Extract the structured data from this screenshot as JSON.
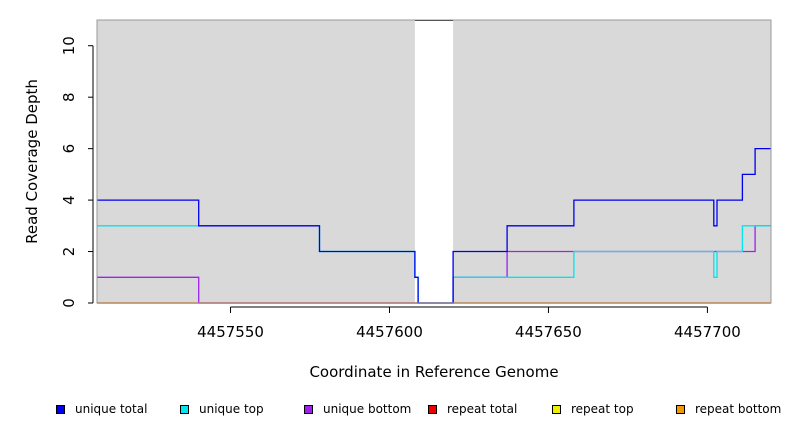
{
  "chart_data": {
    "type": "line",
    "xlabel": "Coordinate in Reference Genome",
    "ylabel": "Read Coverage Depth",
    "xlim": [
      4457508,
      4457720
    ],
    "ylim": [
      0,
      11
    ],
    "x_ticks": [
      4457550,
      4457600,
      4457650,
      4457700
    ],
    "x_tick_labels": [
      "4457550",
      "4457600",
      "4457650",
      "4457700"
    ],
    "y_ticks": [
      0,
      2,
      4,
      6,
      8,
      10
    ],
    "y_tick_labels": [
      "0",
      "2",
      "4",
      "6",
      "8",
      "10"
    ],
    "background_color": "#d9d9d9",
    "uncovered_region": [
      4457608,
      4457620
    ],
    "legend_position": "bottom",
    "series": [
      {
        "name": "unique total",
        "color": "#0000ee",
        "x": [
          4457508,
          4457540,
          4457540,
          4457578,
          4457578,
          4457608,
          4457608,
          4457609,
          4457609,
          4457620,
          4457620,
          4457637,
          4457637,
          4457658,
          4457658,
          4457702,
          4457702,
          4457703,
          4457703,
          4457711,
          4457711,
          4457715,
          4457715,
          4457720
        ],
        "y": [
          4,
          4,
          3,
          3,
          2,
          2,
          1,
          1,
          0,
          0,
          2,
          2,
          3,
          3,
          4,
          4,
          3,
          3,
          4,
          4,
          5,
          5,
          6,
          6
        ]
      },
      {
        "name": "unique top",
        "color": "#00e5ee",
        "x": [
          4457508,
          4457540,
          4457540,
          4457578,
          4457578,
          4457608,
          4457608,
          4457609,
          4457609,
          4457620,
          4457620,
          4457658,
          4457658,
          4457702,
          4457702,
          4457703,
          4457703,
          4457711,
          4457711,
          4457720
        ],
        "y": [
          3,
          3,
          3,
          3,
          2,
          2,
          1,
          1,
          0,
          0,
          1,
          1,
          2,
          2,
          1,
          1,
          2,
          2,
          3,
          3
        ]
      },
      {
        "name": "unique bottom",
        "color": "#a020f0",
        "x": [
          4457508,
          4457540,
          4457540,
          4457620,
          4457620,
          4457637,
          4457637,
          4457715,
          4457715,
          4457720
        ],
        "y": [
          1,
          1,
          0,
          0,
          1,
          1,
          2,
          2,
          3,
          3
        ]
      },
      {
        "name": "repeat total",
        "color": "#ee0000",
        "x": [
          4457508,
          4457720
        ],
        "y": [
          0,
          0
        ]
      },
      {
        "name": "repeat top",
        "color": "#eeee00",
        "x": [
          4457508,
          4457720
        ],
        "y": [
          0,
          0
        ]
      },
      {
        "name": "repeat bottom",
        "color": "#ee9a00",
        "x": [
          4457508,
          4457720
        ],
        "y": [
          0,
          0
        ]
      }
    ]
  }
}
